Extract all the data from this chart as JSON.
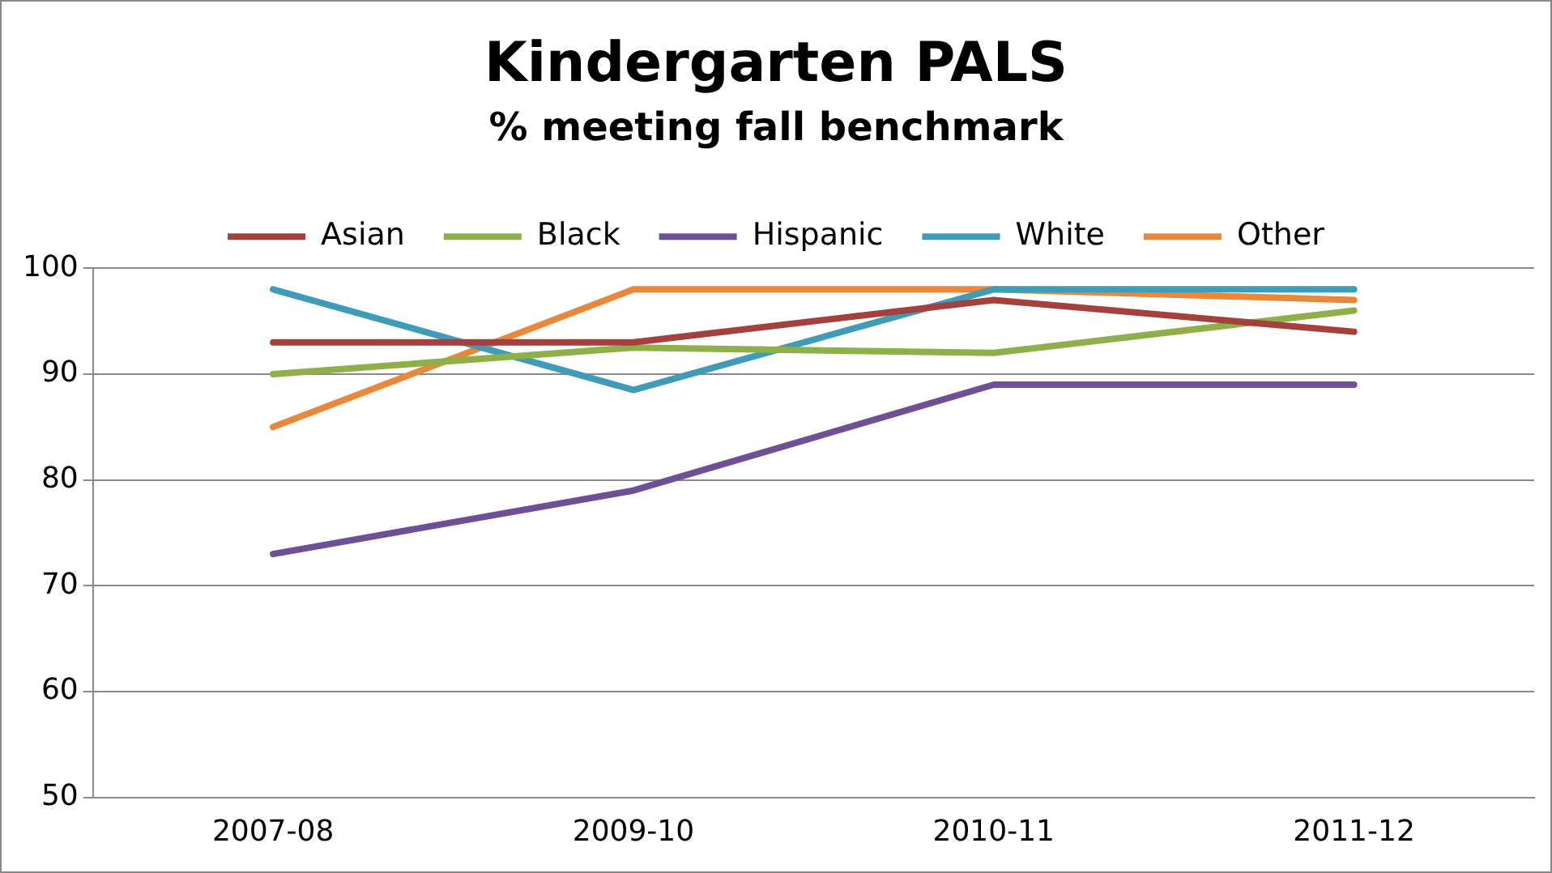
{
  "chart_data": {
    "type": "line",
    "title": "Kindergarten PALS",
    "subtitle": "% meeting fall benchmark",
    "categories": [
      "2007-08",
      "2009-10",
      "2010-11",
      "2011-12"
    ],
    "series": [
      {
        "name": "Asian",
        "color": "#a4403d",
        "values": [
          93,
          93,
          97,
          94
        ]
      },
      {
        "name": "Black",
        "color": "#8db048",
        "values": [
          90,
          92.5,
          92,
          96
        ]
      },
      {
        "name": "Hispanic",
        "color": "#6f4f96",
        "values": [
          73,
          79,
          89,
          89
        ]
      },
      {
        "name": "White",
        "color": "#3f9cb8",
        "values": [
          98,
          88.5,
          98,
          98
        ]
      },
      {
        "name": "Other",
        "color": "#e9873a",
        "values": [
          85,
          98,
          98,
          97
        ]
      }
    ],
    "ylim": [
      50,
      100
    ],
    "yticks": [
      50,
      60,
      70,
      80,
      90,
      100
    ],
    "grid": "y",
    "legend": "top",
    "marker": "none",
    "line_style": "solid"
  }
}
